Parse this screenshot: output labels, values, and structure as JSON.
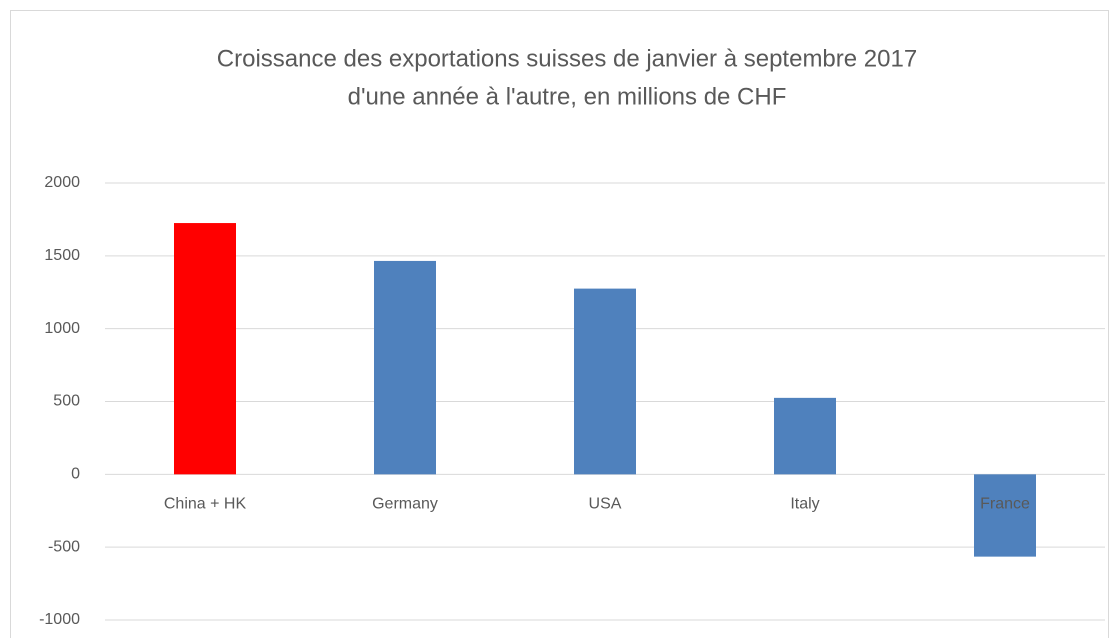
{
  "chart_data": {
    "type": "bar",
    "title": [
      "Croissance des exportations suisses de janvier à septembre 2017",
      "d'une année à l'autre, en millions de CHF"
    ],
    "categories": [
      "China + HK",
      "Germany",
      "USA",
      "Italy",
      "France"
    ],
    "values": [
      1725,
      1465,
      1275,
      525,
      -565
    ],
    "colors": [
      "#ff0000",
      "#4f81bd",
      "#4f81bd",
      "#4f81bd",
      "#4f81bd"
    ],
    "ylim": [
      -1000,
      2000
    ],
    "yticks": [
      -1000,
      -500,
      0,
      500,
      1000,
      1500,
      2000
    ],
    "grid": true
  }
}
